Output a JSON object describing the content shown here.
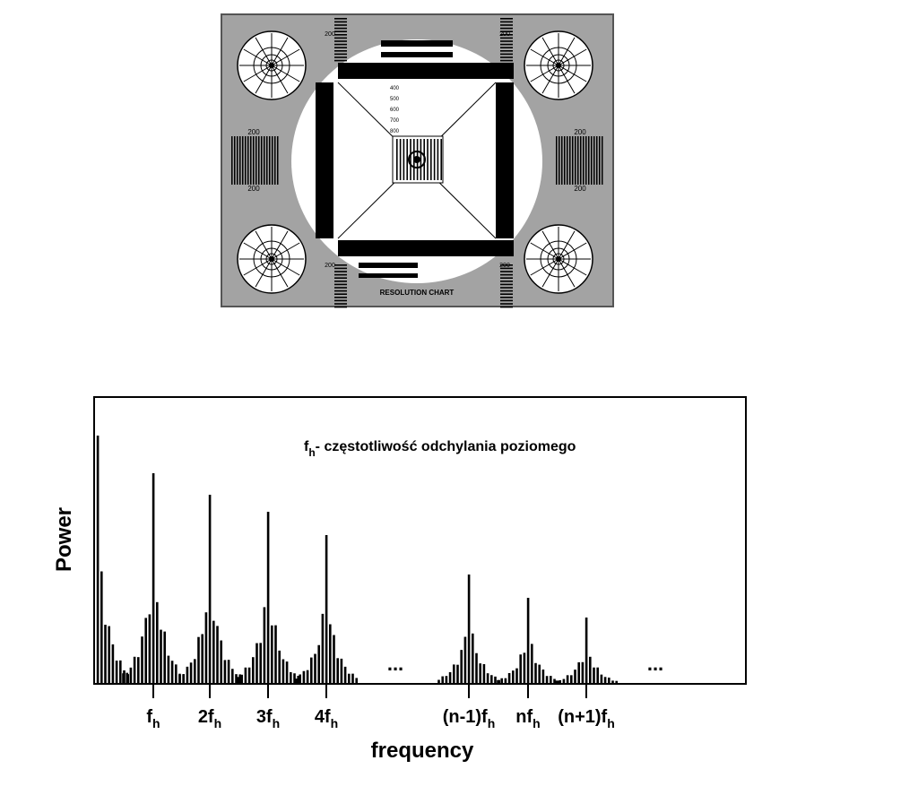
{
  "test_chart": {
    "title": "RESOLUTION CHART",
    "stripe_labels": [
      "200",
      "200",
      "200",
      "200"
    ],
    "corner_labels": [
      "200",
      "200",
      "200",
      "200"
    ],
    "center_scale": [
      "400",
      "500",
      "600",
      "700",
      "800"
    ]
  },
  "spectrum": {
    "annotation": {
      "main": "f",
      "sub": "h",
      "text": "- częstotliwość odchylania poziomego"
    },
    "y_label": "Power",
    "x_label": "frequency",
    "harmonics": [
      {
        "main": "f",
        "sub": "h"
      },
      {
        "main": "2f",
        "sub": "h"
      },
      {
        "main": "3f",
        "sub": "h"
      },
      {
        "main": "4f",
        "sub": "h"
      },
      {
        "main": "(n-1)f",
        "sub": "h"
      },
      {
        "main": "nf",
        "sub": "h"
      },
      {
        "main": "(n+1)f",
        "sub": "h"
      }
    ],
    "ellipses": [
      "...",
      "..."
    ]
  }
}
